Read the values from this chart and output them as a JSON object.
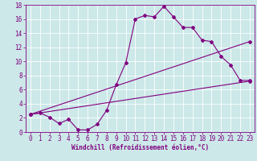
{
  "xlabel": "Windchill (Refroidissement éolien,°C)",
  "bg_color": "#cce8e8",
  "line_color": "#800080",
  "grid_color": "#ffffff",
  "xlim": [
    -0.5,
    23.5
  ],
  "ylim": [
    0,
    18
  ],
  "xticks": [
    0,
    1,
    2,
    3,
    4,
    5,
    6,
    7,
    8,
    9,
    10,
    11,
    12,
    13,
    14,
    15,
    16,
    17,
    18,
    19,
    20,
    21,
    22,
    23
  ],
  "yticks": [
    0,
    2,
    4,
    6,
    8,
    10,
    12,
    14,
    16,
    18
  ],
  "line1_x": [
    0,
    1,
    2,
    3,
    4,
    5,
    6,
    7,
    8,
    9,
    10,
    11,
    12,
    13,
    14,
    15,
    16,
    17,
    18,
    19,
    20,
    21,
    22,
    23
  ],
  "line1_y": [
    2.5,
    2.7,
    2.1,
    1.2,
    1.8,
    0.3,
    0.3,
    1.1,
    3.1,
    6.7,
    9.8,
    16.0,
    16.5,
    16.3,
    17.8,
    16.3,
    14.8,
    14.8,
    13.0,
    12.8,
    10.7,
    9.5,
    7.3,
    7.3
  ],
  "line2_x": [
    0,
    23
  ],
  "line2_y": [
    2.5,
    7.2
  ],
  "line3_x": [
    0,
    23
  ],
  "line3_y": [
    2.5,
    12.8
  ],
  "fontsize": 5.5
}
